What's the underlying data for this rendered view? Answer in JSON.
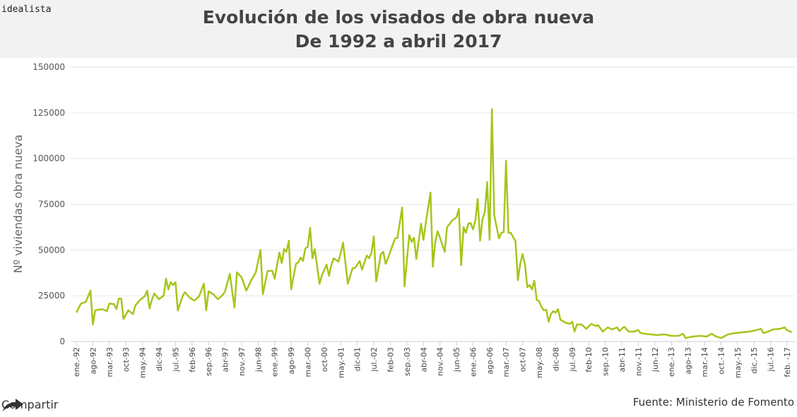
{
  "brand": "idealista",
  "share": {
    "label": "Compartir",
    "icon": "share-arrow-icon"
  },
  "source": "Fuente: Ministerio de Fomento",
  "colors": {
    "line": "#a4c61a",
    "header_bg": "#f2f2f2",
    "grid": "#e6e6e6"
  },
  "chart_data": {
    "type": "line",
    "title": "Evolución de los visados de obra nueva",
    "subtitle": "De 1992 a abril 2017",
    "xlabel": "",
    "ylabel": "Nº viviendas obra nueva",
    "ylim": [
      0,
      150000
    ],
    "xlim": [
      "1992-01",
      "2017-04"
    ],
    "grid": true,
    "yticks": [
      "0",
      "25000",
      "50000",
      "75000",
      "100000",
      "125000",
      "150000"
    ],
    "xticks": [
      {
        "date": "1992-01",
        "label": "ene.-92"
      },
      {
        "date": "1992-08",
        "label": "ago-92"
      },
      {
        "date": "1993-03",
        "label": "mar.-93"
      },
      {
        "date": "1993-10",
        "label": "oct-93"
      },
      {
        "date": "1994-05",
        "label": "may.-94"
      },
      {
        "date": "1994-12",
        "label": "dic-94"
      },
      {
        "date": "1995-07",
        "label": "jul.-95"
      },
      {
        "date": "1996-02",
        "label": "feb-96"
      },
      {
        "date": "1996-09",
        "label": "sep.-96"
      },
      {
        "date": "1997-04",
        "label": "abr-97"
      },
      {
        "date": "1997-11",
        "label": "nov.-97"
      },
      {
        "date": "1998-06",
        "label": "jun-98"
      },
      {
        "date": "1999-01",
        "label": "ene.-99"
      },
      {
        "date": "1999-08",
        "label": "ago-99"
      },
      {
        "date": "2000-03",
        "label": "mar.-00"
      },
      {
        "date": "2000-10",
        "label": "oct-00"
      },
      {
        "date": "2001-05",
        "label": "may.-01"
      },
      {
        "date": "2001-12",
        "label": "dic-01"
      },
      {
        "date": "2002-07",
        "label": "jul.-02"
      },
      {
        "date": "2003-02",
        "label": "feb-03"
      },
      {
        "date": "2003-09",
        "label": "sep.-03"
      },
      {
        "date": "2004-04",
        "label": "abr-04"
      },
      {
        "date": "2004-11",
        "label": "nov.-04"
      },
      {
        "date": "2005-06",
        "label": "jun-05"
      },
      {
        "date": "2006-01",
        "label": "ene.-06"
      },
      {
        "date": "2006-08",
        "label": "ago-06"
      },
      {
        "date": "2007-03",
        "label": "mar.-07"
      },
      {
        "date": "2007-10",
        "label": "oct-07"
      },
      {
        "date": "2008-05",
        "label": "may.-08"
      },
      {
        "date": "2008-12",
        "label": "dic-08"
      },
      {
        "date": "2009-07",
        "label": "jul.-09"
      },
      {
        "date": "2010-02",
        "label": "feb-10"
      },
      {
        "date": "2010-09",
        "label": "sep.-10"
      },
      {
        "date": "2011-04",
        "label": "abr-11"
      },
      {
        "date": "2011-11",
        "label": "nov.-11"
      },
      {
        "date": "2012-06",
        "label": "jun-12"
      },
      {
        "date": "2013-01",
        "label": "ene.-13"
      },
      {
        "date": "2013-08",
        "label": "ago-13"
      },
      {
        "date": "2014-03",
        "label": "mar.-14"
      },
      {
        "date": "2014-10",
        "label": "oct.-14"
      },
      {
        "date": "2015-05",
        "label": "may.-15"
      },
      {
        "date": "2015-12",
        "label": "dic.-15"
      },
      {
        "date": "2016-07",
        "label": "jul.-16"
      },
      {
        "date": "2017-02",
        "label": "feb. -17"
      }
    ],
    "series": [
      {
        "x": [
          "1992-01",
          "1992-03",
          "1992-05",
          "1992-07",
          "1992-08",
          "1992-09",
          "1992-12",
          "1993-02",
          "1993-03",
          "1993-05",
          "1993-06",
          "1993-07",
          "1993-08",
          "1993-09",
          "1993-11",
          "1994-01",
          "1994-02",
          "1994-04",
          "1994-06",
          "1994-07",
          "1994-08",
          "1994-09",
          "1994-10",
          "1994-12",
          "1995-02",
          "1995-03",
          "1995-04",
          "1995-05",
          "1995-06",
          "1995-07",
          "1995-08",
          "1995-10",
          "1995-11",
          "1996-01",
          "1996-03",
          "1996-05",
          "1996-07",
          "1996-08",
          "1996-09",
          "1996-11",
          "1997-01",
          "1997-03",
          "1997-04",
          "1997-06",
          "1997-08",
          "1997-09",
          "1997-11",
          "1998-01",
          "1998-03",
          "1998-05",
          "1998-07",
          "1998-08",
          "1998-10",
          "1998-12",
          "1999-01",
          "1999-03",
          "1999-04",
          "1999-05",
          "1999-06",
          "1999-07",
          "1999-08",
          "1999-10",
          "1999-11",
          "1999-12",
          "2000-01",
          "2000-02",
          "2000-03",
          "2000-04",
          "2000-05",
          "2000-06",
          "2000-08",
          "2000-09",
          "2000-11",
          "2000-12",
          "2001-01",
          "2001-02",
          "2001-04",
          "2001-05",
          "2001-06",
          "2001-08",
          "2001-10",
          "2001-11",
          "2002-01",
          "2002-02",
          "2002-04",
          "2002-05",
          "2002-06",
          "2002-07",
          "2002-08",
          "2002-10",
          "2002-11",
          "2002-12",
          "2003-01",
          "2003-03",
          "2003-04",
          "2003-05",
          "2003-07",
          "2003-08",
          "2003-10",
          "2003-11",
          "2003-12",
          "2004-01",
          "2004-03",
          "2004-04",
          "2004-05",
          "2004-07",
          "2004-08",
          "2004-09",
          "2004-10",
          "2004-11",
          "2005-01",
          "2005-02",
          "2005-03",
          "2005-04",
          "2005-06",
          "2005-07",
          "2005-08",
          "2005-09",
          "2005-10",
          "2005-11",
          "2005-12",
          "2006-01",
          "2006-02",
          "2006-03",
          "2006-04",
          "2006-05",
          "2006-06",
          "2006-07",
          "2006-08",
          "2006-09",
          "2006-10",
          "2006-12",
          "2007-01",
          "2007-02",
          "2007-03",
          "2007-04",
          "2007-05",
          "2007-07",
          "2007-08",
          "2007-09",
          "2007-10",
          "2007-11",
          "2007-12",
          "2008-01",
          "2008-02",
          "2008-03",
          "2008-04",
          "2008-05",
          "2008-06",
          "2008-07",
          "2008-08",
          "2008-09",
          "2008-10",
          "2008-11",
          "2008-12",
          "2009-01",
          "2009-02",
          "2009-04",
          "2009-06",
          "2009-07",
          "2009-08",
          "2009-09",
          "2009-11",
          "2010-01",
          "2010-03",
          "2010-05",
          "2010-06",
          "2010-08",
          "2010-10",
          "2010-12",
          "2011-02",
          "2011-03",
          "2011-05",
          "2011-07",
          "2011-09",
          "2011-11",
          "2011-12",
          "2012-02",
          "2012-04",
          "2012-07",
          "2012-10",
          "2013-01",
          "2013-04",
          "2013-06",
          "2013-07",
          "2013-10",
          "2014-01",
          "2014-04",
          "2014-06",
          "2014-08",
          "2014-10",
          "2015-01",
          "2015-04",
          "2015-07",
          "2015-10",
          "2016-01",
          "2016-03",
          "2016-04",
          "2016-06",
          "2016-08",
          "2016-11",
          "2017-01",
          "2017-02",
          "2017-04"
        ],
        "y": [
          15800,
          20800,
          21600,
          27800,
          9300,
          17000,
          17700,
          16600,
          20800,
          20400,
          17700,
          23500,
          23500,
          12300,
          17000,
          15000,
          19700,
          22700,
          24700,
          27800,
          18100,
          22700,
          26200,
          23100,
          25100,
          34300,
          28500,
          32400,
          30800,
          32400,
          17000,
          24700,
          27000,
          23900,
          22400,
          24700,
          31600,
          17000,
          27400,
          25800,
          23100,
          25400,
          27400,
          37000,
          18500,
          37800,
          35100,
          27800,
          33200,
          37800,
          50100,
          25800,
          38600,
          38600,
          34300,
          48600,
          42800,
          50500,
          49000,
          55100,
          28500,
          42400,
          43200,
          45900,
          44000,
          50900,
          51700,
          62100,
          45500,
          50500,
          31600,
          36200,
          42000,
          35900,
          41600,
          45500,
          43600,
          48600,
          54000,
          31600,
          40100,
          40100,
          44000,
          39300,
          47000,
          45500,
          48600,
          57500,
          32800,
          47800,
          49000,
          42400,
          45500,
          52800,
          56300,
          56700,
          73300,
          30100,
          58200,
          54400,
          56700,
          45100,
          64400,
          55500,
          64800,
          81400,
          40900,
          54400,
          60200,
          56700,
          49000,
          62500,
          64000,
          65900,
          67900,
          72500,
          41600,
          62500,
          59400,
          64400,
          64800,
          61300,
          66300,
          77900,
          55100,
          66700,
          71000,
          87100,
          55500,
          126900,
          69000,
          56300,
          59400,
          59800,
          98700,
          59400,
          59400,
          54800,
          33500,
          42400,
          47800,
          42000,
          29700,
          30800,
          28500,
          33200,
          22700,
          22000,
          18900,
          17000,
          17400,
          10800,
          15000,
          16600,
          15800,
          17700,
          12000,
          10400,
          9600,
          10800,
          5400,
          9300,
          9300,
          6900,
          9600,
          8500,
          8900,
          5400,
          7700,
          6600,
          7700,
          5800,
          8100,
          5400,
          5400,
          6200,
          4600,
          4200,
          3900,
          3500,
          3900,
          3100,
          3100,
          4200,
          1900,
          2700,
          3100,
          2700,
          4200,
          2700,
          1900,
          3900,
          4600,
          5000,
          5400,
          6200,
          6900,
          4600,
          5400,
          6600,
          6900,
          7700,
          6200,
          5000
        ]
      }
    ]
  }
}
